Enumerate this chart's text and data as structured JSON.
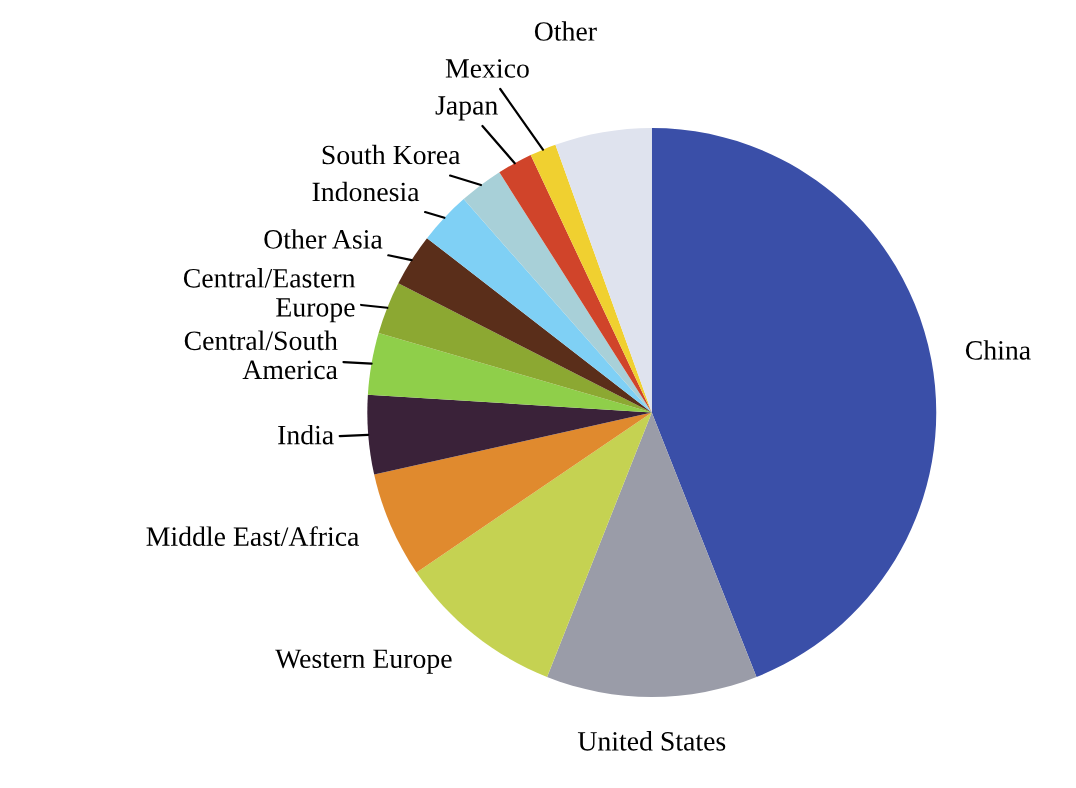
{
  "chart_data": {
    "type": "pie",
    "categories": [
      "China",
      "United States",
      "Western Europe",
      "Middle East/Africa",
      "India",
      "Central/South\nAmerica",
      "Central/Eastern\nEurope",
      "Other Asia",
      "Indonesia",
      "South Korea",
      "Japan",
      "Mexico",
      "Other"
    ],
    "values": [
      44,
      12,
      9.5,
      6,
      4.5,
      3.5,
      3,
      3,
      3,
      2.5,
      2,
      1.5,
      5.5
    ],
    "colors": [
      "#3a4fa8",
      "#9a9ca8",
      "#c5d252",
      "#e08a2e",
      "#3a2239",
      "#8fcf4a",
      "#8ca832",
      "#5a2e1a",
      "#7fd0f5",
      "#a8d0d8",
      "#d0442a",
      "#f0d030",
      "#dfe3ee"
    ],
    "legend": false
  }
}
